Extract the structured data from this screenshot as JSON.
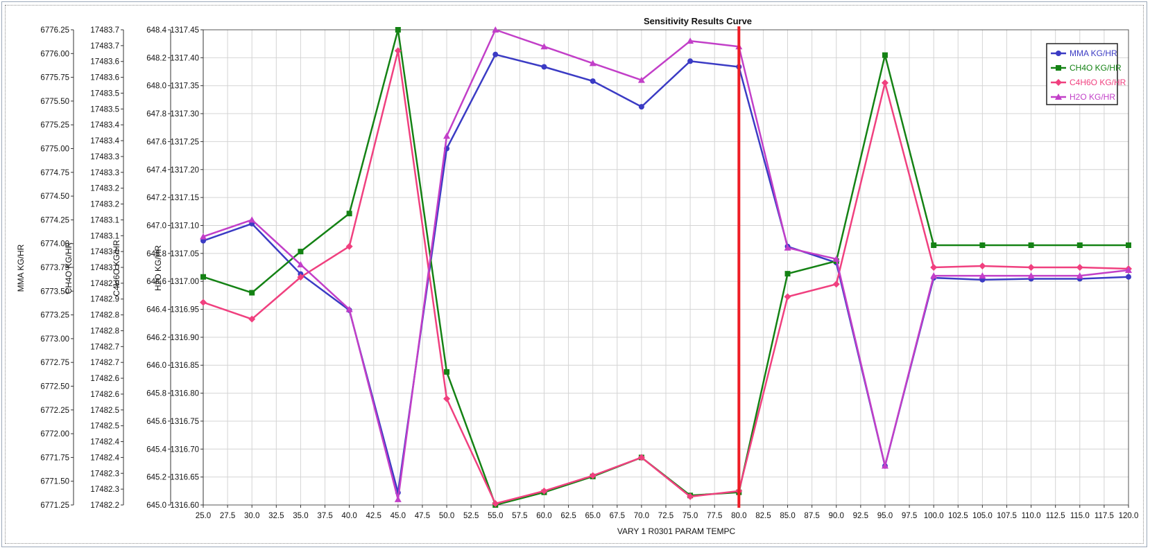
{
  "chart_data": {
    "type": "line",
    "title": "Sensitivity Results Curve",
    "xlabel": "VARY   1 R0301 PARAM TEMPC",
    "x": [
      25,
      30,
      35,
      40,
      45,
      50,
      55,
      60,
      65,
      70,
      75,
      80,
      85,
      90,
      95,
      100,
      105,
      110,
      115,
      120
    ],
    "xlim": [
      25,
      120
    ],
    "x_ticks": [
      "25.0",
      "27.5",
      "30.0",
      "32.5",
      "35.0",
      "37.5",
      "40.0",
      "42.5",
      "45.0",
      "47.5",
      "50.0",
      "52.5",
      "55.0",
      "57.5",
      "60.0",
      "62.5",
      "65.0",
      "67.5",
      "70.0",
      "72.5",
      "75.0",
      "77.5",
      "80.0",
      "82.5",
      "85.0",
      "87.5",
      "90.0",
      "92.5",
      "95.0",
      "97.5",
      "100.0",
      "102.5",
      "105.0",
      "107.5",
      "110.0",
      "112.5",
      "115.0",
      "117.5",
      "120.0"
    ],
    "grid": true,
    "legend_position": "top-right",
    "vertical_marker": {
      "x": 80,
      "color": "#ee1c25"
    },
    "axes": [
      {
        "label": "MMA KG/HR",
        "ylim": [
          6771.25,
          6776.25
        ],
        "ticks": [
          "6776.25",
          "6776.00",
          "6775.75",
          "6775.50",
          "6775.25",
          "6775.00",
          "6774.75",
          "6774.50",
          "6774.25",
          "6774.00",
          "6773.75",
          "6773.50",
          "6773.25",
          "6773.00",
          "6772.75",
          "6772.50",
          "6772.25",
          "6772.00",
          "6771.75",
          "6771.50",
          "6771.25"
        ]
      },
      {
        "label": "CH4O KG/HR",
        "ylim": [
          17482.2,
          17483.7
        ],
        "ticks": [
          "17483.7",
          "17483.7",
          "17483.6",
          "17483.6",
          "17483.5",
          "17483.5",
          "17483.4",
          "17483.4",
          "17483.3",
          "17483.3",
          "17483.2",
          "17483.2",
          "17483.1",
          "17483.1",
          "17483.0",
          "17483.0",
          "17482.9",
          "17482.9",
          "17482.8",
          "17482.8",
          "17482.7",
          "17482.7",
          "17482.6",
          "17482.6",
          "17482.5",
          "17482.5",
          "17482.4",
          "17482.4",
          "17482.3",
          "17482.3",
          "17482.2"
        ]
      },
      {
        "label": "C4H6O KG/HR",
        "ylim": [
          645.0,
          648.4
        ],
        "ticks": [
          "648.4",
          "648.2",
          "648.0",
          "647.8",
          "647.6",
          "647.4",
          "647.2",
          "647.0",
          "646.8",
          "646.6",
          "646.4",
          "646.2",
          "646.0",
          "645.8",
          "645.6",
          "645.4",
          "645.2",
          "645.0"
        ]
      },
      {
        "label": "H2O KG/HR",
        "ylim": [
          1316.6,
          1317.45
        ],
        "ticks": [
          "1317.45",
          "1317.40",
          "1317.35",
          "1317.30",
          "1317.25",
          "1317.20",
          "1317.15",
          "1317.10",
          "1317.05",
          "1317.00",
          "1316.95",
          "1316.90",
          "1316.85",
          "1316.80",
          "1316.75",
          "1316.70",
          "1316.65",
          "1316.60"
        ]
      }
    ],
    "series": [
      {
        "name": "MMA KG/HR",
        "axis": 0,
        "color": "#3b3bc4",
        "marker": "circle",
        "values": [
          6774.03,
          6774.21,
          6773.68,
          6773.3,
          6771.38,
          6775.0,
          6775.99,
          6775.86,
          6775.71,
          6775.44,
          6775.92,
          6775.86,
          6773.97,
          6773.8,
          6771.66,
          6773.64,
          6773.62,
          6773.63,
          6773.63,
          6773.65
        ]
      },
      {
        "name": "CH4O KG/HR",
        "axis": 1,
        "color": "#148214",
        "marker": "square",
        "values": [
          17482.92,
          17482.87,
          17483.0,
          17483.12,
          17483.7,
          17482.62,
          17482.2,
          17482.24,
          17482.29,
          17482.35,
          17482.23,
          17482.24,
          17482.93,
          17482.97,
          17483.62,
          17483.02,
          17483.02,
          17483.02,
          17483.02,
          17483.02
        ]
      },
      {
        "name": "C4H6O KG/HR",
        "axis": 2,
        "color": "#f0407f",
        "marker": "diamond",
        "values": [
          646.45,
          646.33,
          646.63,
          646.85,
          648.25,
          645.76,
          645.01,
          645.1,
          645.21,
          645.34,
          645.06,
          645.1,
          646.49,
          646.58,
          648.02,
          646.7,
          646.71,
          646.7,
          646.7,
          646.69
        ]
      },
      {
        "name": "H2O KG/HR",
        "axis": 3,
        "color": "#c23fc8",
        "marker": "triangle",
        "values": [
          1317.08,
          1317.11,
          1317.03,
          1316.95,
          1316.61,
          1317.26,
          1317.45,
          1317.42,
          1317.39,
          1317.36,
          1317.43,
          1317.42,
          1317.06,
          1317.04,
          1316.67,
          1317.01,
          1317.01,
          1317.01,
          1317.01,
          1317.02
        ]
      }
    ]
  }
}
